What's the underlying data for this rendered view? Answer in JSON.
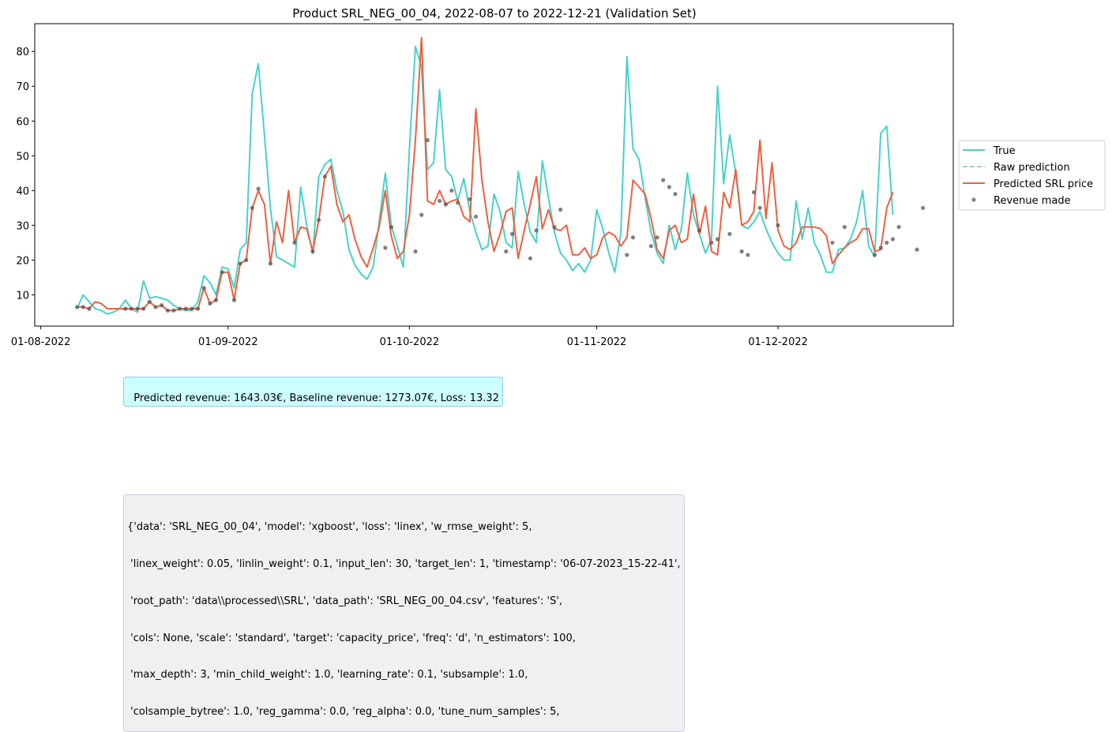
{
  "chart_data": {
    "type": "line",
    "title": "Product SRL_NEG_00_04, 2022-08-07 to 2022-12-21 (Validation Set)",
    "x_start": "2022-08-07",
    "x_end": "2022-12-21",
    "xlim": [
      "2022-07-31",
      "2022-12-30"
    ],
    "ylim": [
      1,
      88
    ],
    "x_ticks": [
      {
        "date": "2022-08-01",
        "label": "01-08-2022"
      },
      {
        "date": "2022-09-01",
        "label": "01-09-2022"
      },
      {
        "date": "2022-10-01",
        "label": "01-10-2022"
      },
      {
        "date": "2022-11-01",
        "label": "01-11-2022"
      },
      {
        "date": "2022-12-01",
        "label": "01-12-2022"
      }
    ],
    "y_ticks": [
      10,
      20,
      30,
      40,
      50,
      60,
      70,
      80
    ],
    "grid": false,
    "legend_position": "right outside",
    "legend": [
      {
        "label": "True",
        "color": "#48d1cc",
        "style": "line"
      },
      {
        "label": "Raw prediction",
        "color": "#99d8a8",
        "style": "dashed"
      },
      {
        "label": "Predicted SRL price",
        "color": "#ee6040",
        "style": "line"
      },
      {
        "label": "Revenue made",
        "color": "#6e6e6e",
        "style": "dot"
      }
    ],
    "series": [
      {
        "name": "True",
        "color": "#48d1cc",
        "values": [
          6,
          10,
          8,
          6,
          5.5,
          4.5,
          5,
          6,
          8.5,
          6,
          5,
          14,
          9,
          9.5,
          9,
          8.5,
          7,
          6,
          5.5,
          5.5,
          8,
          15.5,
          13.5,
          10,
          18,
          17.5,
          12,
          23,
          25,
          68,
          76.5,
          56,
          35,
          21,
          20,
          19,
          18,
          41,
          30,
          22,
          44,
          47.5,
          49,
          40,
          34,
          23,
          18.5,
          16,
          14.5,
          18,
          31,
          45,
          30,
          24,
          18,
          52,
          81.5,
          75.5,
          46,
          48,
          69,
          46,
          44,
          37,
          43.5,
          34,
          28,
          23,
          24,
          39,
          34,
          25,
          23.5,
          45.5,
          36,
          28,
          25,
          48.5,
          38,
          28,
          22,
          20,
          17,
          19,
          16.5,
          20,
          34.5,
          29,
          22,
          16.5,
          28,
          78.5,
          52,
          49,
          38,
          28,
          22,
          19,
          30,
          23,
          29,
          45,
          33,
          27.5,
          22,
          26,
          70,
          42,
          56,
          45,
          30,
          29,
          31,
          34,
          29,
          25,
          22,
          20,
          20,
          37,
          26,
          35,
          25,
          21.5,
          16.5,
          16.5,
          23,
          23.5,
          26,
          31,
          40,
          24,
          21,
          56.5,
          58.5,
          33
        ]
      },
      {
        "name": "Predicted SRL price",
        "color": "#ee6040",
        "values": [
          6.5,
          6.5,
          6,
          8,
          7.5,
          6,
          6,
          6,
          6,
          6,
          6,
          6,
          8,
          6.5,
          7,
          5.5,
          5.5,
          6,
          6,
          6,
          6,
          12,
          7.5,
          8.5,
          16.5,
          16.5,
          8.5,
          19,
          20,
          35,
          40,
          36,
          19,
          31,
          25,
          40,
          25,
          29.5,
          29,
          22.5,
          31.5,
          44,
          47,
          36,
          31,
          33,
          26,
          21,
          18,
          23.5,
          29.5,
          40,
          27,
          20.5,
          22.5,
          33,
          54.5,
          84,
          37,
          36,
          40,
          36,
          37,
          37.5,
          32.5,
          31,
          63.5,
          43,
          31,
          22.5,
          27.5,
          34,
          35,
          20.5,
          28.5,
          36,
          44,
          29,
          34.5,
          29,
          28.5,
          30,
          21.5,
          21.5,
          23.5,
          20.5,
          21.5,
          26.5,
          28,
          27,
          24,
          26.5,
          43,
          41,
          39,
          32,
          23,
          20.5,
          28.5,
          30,
          25,
          26,
          39,
          27.5,
          35.5,
          22.5,
          21.5,
          39.5,
          35,
          46,
          30,
          31,
          34,
          54.5,
          32,
          48,
          28.5,
          24,
          23,
          25,
          29.5,
          29.5,
          29.5,
          29,
          27,
          19,
          21.5,
          23.5,
          25,
          26,
          29,
          29,
          22.5,
          23,
          35,
          39.5
        ]
      }
    ],
    "revenue_points": [
      [
        0,
        6.5
      ],
      [
        1,
        6.5
      ],
      [
        2,
        6
      ],
      [
        8,
        6
      ],
      [
        9,
        6
      ],
      [
        10,
        6
      ],
      [
        11,
        6
      ],
      [
        12,
        8
      ],
      [
        13,
        6.5
      ],
      [
        14,
        7
      ],
      [
        15,
        5.5
      ],
      [
        16,
        5.5
      ],
      [
        17,
        6
      ],
      [
        18,
        6
      ],
      [
        19,
        6
      ],
      [
        20,
        6
      ],
      [
        21,
        12
      ],
      [
        22,
        7.5
      ],
      [
        23,
        8.5
      ],
      [
        24,
        16.5
      ],
      [
        26,
        8.5
      ],
      [
        27,
        19
      ],
      [
        28,
        20
      ],
      [
        29,
        35
      ],
      [
        30,
        40.5
      ],
      [
        32,
        19
      ],
      [
        36,
        25
      ],
      [
        39,
        22.5
      ],
      [
        40,
        31.5
      ],
      [
        41,
        44
      ],
      [
        51,
        23.5
      ],
      [
        52,
        29.5
      ],
      [
        56,
        22.5
      ],
      [
        57,
        33
      ],
      [
        58,
        54.5
      ],
      [
        60,
        37
      ],
      [
        61,
        36
      ],
      [
        62,
        40
      ],
      [
        63,
        36.5
      ],
      [
        65,
        37.5
      ],
      [
        66,
        32.5
      ],
      [
        71,
        22.5
      ],
      [
        72,
        27.5
      ],
      [
        75,
        20.5
      ],
      [
        76,
        28.5
      ],
      [
        79,
        29.5
      ],
      [
        80,
        34.5
      ],
      [
        91,
        21.5
      ],
      [
        92,
        26.5
      ],
      [
        95,
        24
      ],
      [
        96,
        26.5
      ],
      [
        97,
        43
      ],
      [
        98,
        41
      ],
      [
        99,
        39
      ],
      [
        103,
        28.5
      ],
      [
        105,
        25
      ],
      [
        106,
        26
      ],
      [
        108,
        27.5
      ],
      [
        110,
        22.5
      ],
      [
        111,
        21.5
      ],
      [
        112,
        39.5
      ],
      [
        113,
        35
      ],
      [
        116,
        30
      ],
      [
        125,
        25
      ],
      [
        127,
        29.5
      ],
      [
        132,
        21.5
      ],
      [
        133,
        23.5
      ],
      [
        134,
        25
      ],
      [
        135,
        26
      ],
      [
        136,
        29.5
      ],
      [
        139,
        23
      ],
      [
        140,
        35
      ]
    ]
  },
  "annotations": {
    "revenue_text": "Predicted revenue: 1643.03€, Baseline revenue: 1273.07€, Loss: 13.32",
    "params_lines": [
      "{'data': 'SRL_NEG_00_04', 'model': 'xgboost', 'loss': 'linex', 'w_rmse_weight': 5,",
      " 'linex_weight': 0.05, 'linlin_weight': 0.1, 'input_len': 30, 'target_len': 1, 'timestamp': '06-07-2023_15-22-41',",
      " 'root_path': 'data\\\\processed\\\\SRL', 'data_path': 'SRL_NEG_00_04.csv', 'features': 'S',",
      " 'cols': None, 'scale': 'standard', 'target': 'capacity_price', 'freq': 'd', 'n_estimators': 100,",
      " 'max_depth': 3, 'min_child_weight': 1.0, 'learning_rate': 0.1, 'subsample': 1.0,",
      " 'colsample_bytree': 1.0, 'reg_gamma': 0.0, 'reg_alpha': 0.0, 'tune_num_samples': 5,"
    ]
  }
}
